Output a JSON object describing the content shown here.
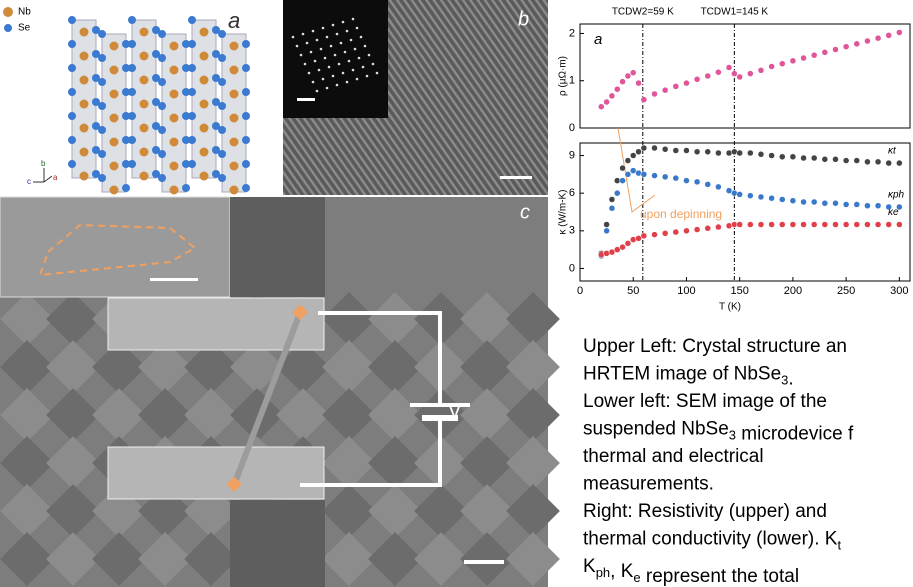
{
  "panels": {
    "crystal": {
      "label": "a",
      "legend": [
        "Nb",
        "Se"
      ],
      "axes": [
        "b",
        "c",
        "a"
      ]
    },
    "hrtem": {
      "label": "b"
    },
    "sem": {
      "label": "c",
      "voltage": "V"
    }
  },
  "chart_data": [
    {
      "type": "scatter",
      "panel_label": "a",
      "ylabel": "ρ (μΩ·m)",
      "vlines": [
        {
          "value": 59,
          "label": "TCDW2=59 K"
        },
        {
          "value": 145,
          "label": "TCDW1=145 K"
        }
      ],
      "xlim": [
        0,
        310
      ],
      "ylim": [
        0,
        2.2
      ],
      "yticks": [
        0,
        1,
        2
      ],
      "x": [
        20,
        25,
        30,
        35,
        40,
        45,
        50,
        55,
        60,
        70,
        80,
        90,
        100,
        110,
        120,
        130,
        140,
        145,
        150,
        160,
        170,
        180,
        190,
        200,
        210,
        220,
        230,
        240,
        250,
        260,
        270,
        280,
        290,
        300
      ],
      "series": [
        {
          "color": "#e0559a",
          "values": [
            0.45,
            0.55,
            0.68,
            0.82,
            0.98,
            1.1,
            1.17,
            0.95,
            0.6,
            0.72,
            0.8,
            0.88,
            0.95,
            1.03,
            1.1,
            1.18,
            1.28,
            1.15,
            1.08,
            1.15,
            1.22,
            1.3,
            1.36,
            1.42,
            1.48,
            1.54,
            1.6,
            1.66,
            1.72,
            1.78,
            1.84,
            1.9,
            1.96,
            2.02
          ]
        }
      ]
    },
    {
      "type": "scatter",
      "ylabel": "κ (W/m-K)",
      "xlabel": "T (K)",
      "annotation": "upon depinning",
      "xlim": [
        0,
        310
      ],
      "ylim": [
        -1,
        10
      ],
      "yticks": [
        0,
        3,
        6,
        9
      ],
      "xticks": [
        0,
        50,
        100,
        150,
        200,
        250,
        300
      ],
      "x": [
        20,
        25,
        30,
        35,
        40,
        45,
        50,
        55,
        60,
        70,
        80,
        90,
        100,
        110,
        120,
        130,
        140,
        145,
        150,
        160,
        170,
        180,
        190,
        200,
        210,
        220,
        230,
        240,
        250,
        260,
        270,
        280,
        290,
        300
      ],
      "series": [
        {
          "name": "κt",
          "color": "#444444",
          "values": [
            1.2,
            3.5,
            5.5,
            7.0,
            8.0,
            8.6,
            9.0,
            9.3,
            9.6,
            9.6,
            9.5,
            9.4,
            9.4,
            9.3,
            9.3,
            9.2,
            9.2,
            9.3,
            9.2,
            9.2,
            9.1,
            9.0,
            8.9,
            8.9,
            8.8,
            8.8,
            8.7,
            8.7,
            8.6,
            8.6,
            8.5,
            8.5,
            8.4,
            8.4
          ]
        },
        {
          "name": "κph",
          "color": "#3a78c9",
          "values": [
            1.0,
            3.0,
            4.8,
            6.0,
            7.0,
            7.5,
            7.8,
            7.6,
            7.5,
            7.4,
            7.3,
            7.2,
            7.0,
            6.9,
            6.7,
            6.5,
            6.2,
            6.0,
            5.9,
            5.8,
            5.7,
            5.6,
            5.5,
            5.4,
            5.3,
            5.3,
            5.2,
            5.2,
            5.1,
            5.1,
            5.0,
            5.0,
            4.9,
            4.9
          ]
        },
        {
          "name": "κe",
          "color": "#e0404a",
          "values": [
            1.1,
            1.2,
            1.3,
            1.5,
            1.7,
            2.0,
            2.3,
            2.4,
            2.6,
            2.7,
            2.8,
            2.9,
            3.0,
            3.1,
            3.2,
            3.3,
            3.4,
            3.5,
            3.5,
            3.5,
            3.5,
            3.5,
            3.5,
            3.5,
            3.5,
            3.5,
            3.5,
            3.5,
            3.5,
            3.5,
            3.5,
            3.5,
            3.5,
            3.5
          ]
        }
      ]
    }
  ],
  "caption": [
    [
      "Upper Left: Crystal structure an"
    ],
    [
      "HRTEM image of NbSe",
      {
        "sub": "3"
      },
      "."
    ],
    [
      "Lower left: SEM image of the"
    ],
    [
      "suspended NbSe",
      {
        "sub": "3"
      },
      " microdevice f"
    ],
    [
      "thermal and electrical"
    ],
    [
      "measurements."
    ],
    [
      "Right: Resistivity (upper) and"
    ],
    [
      "thermal conductivity (lower). K",
      {
        "sub": "t"
      }
    ],
    [
      "K",
      {
        "sub": "ph"
      },
      ", K",
      {
        "sub": "e"
      },
      " represent the total"
    ]
  ]
}
